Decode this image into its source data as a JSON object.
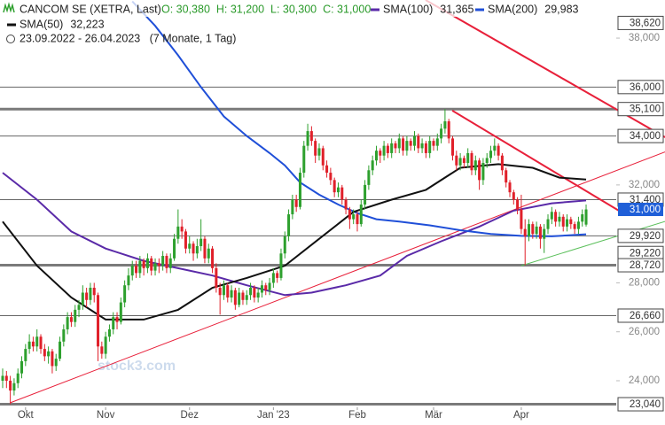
{
  "chart_data": {
    "type": "candlestick",
    "title": "CANCOM SE (XETRA, Last)",
    "ohlc_text": "O: 30,380  H: 31,200  L: 30,300  C: 31,000",
    "period": "23.09.2022 - 26.04.2023   (7 Monate, 1 Tag)",
    "watermark": "stock3.com",
    "up_color": "#2ea02e",
    "down_color": "#e0202a",
    "xlim": [
      -0.7,
      160.9
    ],
    "ylim": [
      22.915,
      39.557
    ],
    "xticks": [
      {
        "value": 6,
        "label": "Okt"
      },
      {
        "value": 27,
        "label": "Nov"
      },
      {
        "value": 49,
        "label": "Dez"
      },
      {
        "value": 71,
        "label": "Jan '23"
      },
      {
        "value": 93,
        "label": "Feb"
      },
      {
        "value": 113,
        "label": "Mär"
      },
      {
        "value": 136,
        "label": "Apr"
      }
    ],
    "yticks": [
      {
        "value": 38,
        "label": "38,000"
      },
      {
        "value": 32,
        "label": "32,000"
      },
      {
        "value": 28,
        "label": "28,000"
      },
      {
        "value": 26,
        "label": "26,000"
      },
      {
        "value": 24,
        "label": "24,000"
      }
    ],
    "levels": [
      {
        "value": 38.62,
        "label": "38,620",
        "style": "none"
      },
      {
        "value": 36.0,
        "label": "36,000",
        "style": "thin"
      },
      {
        "value": 35.1,
        "label": "35,100",
        "style": "thick"
      },
      {
        "value": 34.0,
        "label": "34,000",
        "style": "thin"
      },
      {
        "value": 31.4,
        "label": "31,400",
        "style": "thin"
      },
      {
        "value": 29.92,
        "label": "29,920",
        "style": "thin"
      },
      {
        "value": 29.22,
        "label": "29,220",
        "style": "none"
      },
      {
        "value": 28.72,
        "label": "28,720",
        "style": "thick"
      },
      {
        "value": 26.66,
        "label": "26,660",
        "style": "thin"
      },
      {
        "value": 23.04,
        "label": "23,040",
        "style": "thick"
      }
    ],
    "last": {
      "value": 31.0,
      "label": "31,000",
      "color": "#1f5fd8"
    },
    "trendlines": [
      {
        "color": "#e8203a",
        "width": 1,
        "x": [
          2,
          173.7
        ],
        "y": [
          23.1,
          33.35
        ]
      },
      {
        "color": "#e8203a",
        "width": 2,
        "x": [
          110.9,
          173.7
        ],
        "y": [
          39.557,
          33.95
        ]
      },
      {
        "color": "#e8203a",
        "width": 2,
        "x": [
          117.9,
          162.1
        ],
        "y": [
          35.04,
          30.9
        ]
      },
      {
        "color": "#5cc05c",
        "width": 1,
        "x": [
          136,
          173.7
        ],
        "y": [
          28.7,
          30.51
        ]
      }
    ],
    "series": [
      {
        "name": "SMA(100)",
        "legend_value": "31,365",
        "color": "#5a2aa8",
        "x": [
          0,
          9,
          18,
          27,
          37,
          46,
          55,
          64,
          74,
          81,
          90,
          99,
          106,
          115,
          125,
          134,
          144,
          153
        ],
        "values": [
          32.5,
          31.4,
          30.1,
          29.4,
          28.9,
          28.6,
          28.3,
          27.9,
          27.5,
          27.6,
          27.9,
          28.3,
          29.1,
          29.7,
          30.3,
          30.95,
          31.25,
          31.365
        ]
      },
      {
        "name": "SMA(200)",
        "legend_value": "29,983",
        "color": "#1f4fd8",
        "x": [
          34,
          40,
          46,
          52,
          58,
          64,
          70,
          74,
          78,
          83,
          88,
          93,
          98,
          104,
          112,
          120,
          128,
          136,
          144,
          153
        ],
        "values": [
          39.5,
          38.5,
          37.3,
          36.0,
          34.8,
          34.0,
          33.3,
          32.8,
          32.1,
          31.6,
          31.2,
          30.85,
          30.6,
          30.5,
          30.35,
          30.15,
          30.0,
          29.92,
          29.9,
          29.983
        ]
      },
      {
        "name": "SMA(50)",
        "legend_value": "32,223",
        "color": "#111111",
        "x": [
          0,
          9,
          18,
          27,
          37,
          46,
          55,
          64,
          74,
          83,
          92,
          102,
          111,
          120,
          130,
          139,
          146,
          153
        ],
        "values": [
          30.5,
          28.7,
          27.4,
          26.5,
          26.5,
          26.9,
          27.8,
          28.2,
          28.7,
          29.8,
          30.9,
          31.4,
          31.8,
          32.7,
          32.85,
          32.7,
          32.3,
          32.223
        ]
      }
    ],
    "ohlc": [
      [
        24.0,
        24.5,
        23.7,
        24.2
      ],
      [
        24.2,
        24.4,
        23.7,
        24.0
      ],
      [
        24.0,
        24.2,
        23.04,
        23.6
      ],
      [
        23.6,
        24.1,
        23.4,
        23.9
      ],
      [
        23.9,
        24.5,
        23.7,
        24.3
      ],
      [
        24.3,
        25.0,
        24.1,
        24.8
      ],
      [
        24.8,
        25.5,
        24.6,
        25.3
      ],
      [
        25.3,
        25.9,
        25.1,
        25.6
      ],
      [
        25.6,
        25.8,
        25.2,
        25.4
      ],
      [
        25.4,
        26.1,
        25.2,
        25.8
      ],
      [
        25.8,
        25.9,
        25.1,
        25.3
      ],
      [
        25.3,
        25.5,
        24.8,
        25.0
      ],
      [
        25.0,
        25.4,
        24.7,
        25.2
      ],
      [
        25.2,
        25.3,
        24.3,
        24.6
      ],
      [
        24.6,
        25.1,
        24.4,
        24.9
      ],
      [
        24.9,
        25.8,
        24.8,
        25.6
      ],
      [
        25.6,
        26.3,
        25.4,
        26.1
      ],
      [
        26.1,
        26.8,
        25.9,
        26.6
      ],
      [
        26.6,
        26.8,
        26.2,
        26.4
      ],
      [
        26.4,
        27.1,
        26.2,
        26.9
      ],
      [
        26.9,
        27.3,
        26.6,
        27.1
      ],
      [
        27.1,
        27.9,
        26.9,
        27.6
      ],
      [
        27.6,
        27.8,
        27.0,
        27.3
      ],
      [
        27.3,
        28.0,
        27.1,
        27.8
      ],
      [
        27.8,
        28.0,
        27.2,
        27.5
      ],
      [
        27.5,
        27.6,
        24.8,
        25.4
      ],
      [
        25.4,
        25.6,
        24.9,
        25.1
      ],
      [
        25.1,
        26.0,
        24.9,
        25.8
      ],
      [
        25.8,
        26.3,
        25.6,
        26.1
      ],
      [
        26.1,
        26.8,
        25.9,
        26.6
      ],
      [
        26.6,
        26.8,
        26.1,
        26.4
      ],
      [
        26.4,
        27.4,
        26.3,
        27.2
      ],
      [
        27.2,
        28.1,
        27.0,
        27.9
      ],
      [
        27.9,
        28.6,
        27.7,
        28.3
      ],
      [
        28.3,
        28.9,
        28.1,
        28.7
      ],
      [
        28.7,
        28.9,
        28.2,
        28.4
      ],
      [
        28.4,
        29.1,
        28.2,
        28.9
      ],
      [
        28.9,
        29.0,
        28.3,
        28.6
      ],
      [
        28.6,
        29.2,
        28.4,
        29.0
      ],
      [
        29.0,
        29.1,
        28.3,
        28.5
      ],
      [
        28.5,
        29.0,
        28.3,
        28.8
      ],
      [
        28.8,
        29.0,
        28.4,
        28.7
      ],
      [
        28.7,
        29.3,
        28.5,
        29.1
      ],
      [
        29.1,
        29.2,
        28.4,
        28.6
      ],
      [
        28.6,
        29.2,
        28.4,
        29.0
      ],
      [
        29.0,
        30.0,
        28.9,
        29.8
      ],
      [
        29.8,
        31.0,
        29.6,
        30.3
      ],
      [
        30.3,
        30.6,
        29.8,
        30.1
      ],
      [
        30.1,
        30.2,
        29.2,
        29.4
      ],
      [
        29.4,
        29.9,
        29.2,
        29.6
      ],
      [
        29.6,
        29.7,
        28.9,
        29.2
      ],
      [
        29.2,
        29.8,
        29.0,
        29.5
      ],
      [
        29.5,
        30.6,
        29.3,
        29.8
      ],
      [
        29.8,
        29.9,
        28.8,
        29.0
      ],
      [
        29.0,
        29.6,
        28.8,
        29.4
      ],
      [
        29.4,
        29.5,
        28.4,
        28.6
      ],
      [
        28.6,
        28.8,
        27.6,
        27.8
      ],
      [
        27.8,
        28.0,
        26.7,
        27.5
      ],
      [
        27.5,
        28.1,
        27.3,
        27.9
      ],
      [
        27.9,
        28.0,
        27.2,
        27.4
      ],
      [
        27.4,
        27.9,
        27.2,
        27.7
      ],
      [
        27.7,
        27.8,
        26.9,
        27.1
      ],
      [
        27.1,
        27.8,
        27.0,
        27.6
      ],
      [
        27.6,
        27.7,
        27.1,
        27.3
      ],
      [
        27.3,
        27.7,
        27.1,
        27.5
      ],
      [
        27.5,
        28.0,
        27.3,
        27.8
      ],
      [
        27.8,
        27.9,
        27.2,
        27.4
      ],
      [
        27.4,
        27.8,
        27.2,
        27.6
      ],
      [
        27.6,
        28.1,
        27.4,
        27.9
      ],
      [
        27.9,
        28.0,
        27.5,
        27.7
      ],
      [
        27.7,
        28.2,
        27.5,
        28.0
      ],
      [
        28.0,
        28.6,
        27.8,
        28.4
      ],
      [
        28.4,
        28.5,
        28.0,
        28.2
      ],
      [
        28.2,
        29.4,
        28.1,
        29.2
      ],
      [
        29.2,
        30.1,
        29.0,
        29.9
      ],
      [
        29.9,
        31.0,
        29.7,
        30.8
      ],
      [
        30.8,
        31.6,
        30.6,
        31.4
      ],
      [
        31.4,
        31.6,
        30.9,
        31.1
      ],
      [
        31.1,
        32.7,
        31.0,
        32.5
      ],
      [
        32.5,
        33.8,
        32.3,
        33.6
      ],
      [
        33.6,
        34.5,
        33.4,
        34.2
      ],
      [
        34.2,
        34.4,
        33.6,
        33.8
      ],
      [
        33.8,
        33.9,
        32.9,
        33.2
      ],
      [
        33.2,
        33.7,
        33.0,
        33.5
      ],
      [
        33.5,
        33.6,
        32.6,
        32.8
      ],
      [
        32.8,
        33.0,
        32.3,
        32.5
      ],
      [
        32.5,
        32.7,
        32.0,
        32.2
      ],
      [
        32.2,
        32.3,
        31.5,
        31.7
      ],
      [
        31.7,
        32.1,
        31.5,
        31.9
      ],
      [
        31.9,
        32.0,
        31.2,
        31.4
      ],
      [
        31.4,
        31.5,
        30.8,
        31.0
      ],
      [
        31.0,
        31.1,
        30.2,
        30.6
      ],
      [
        30.6,
        31.0,
        30.4,
        30.8
      ],
      [
        30.8,
        30.9,
        30.1,
        30.4
      ],
      [
        30.4,
        31.4,
        30.3,
        31.2
      ],
      [
        31.2,
        32.2,
        31.0,
        32.0
      ],
      [
        32.0,
        32.8,
        31.8,
        32.6
      ],
      [
        32.6,
        33.2,
        32.4,
        33.0
      ],
      [
        33.0,
        33.6,
        32.8,
        33.4
      ],
      [
        33.4,
        33.5,
        32.9,
        33.2
      ],
      [
        33.2,
        33.8,
        33.0,
        33.6
      ],
      [
        33.6,
        33.7,
        33.1,
        33.3
      ],
      [
        33.3,
        33.9,
        33.1,
        33.7
      ],
      [
        33.7,
        33.8,
        33.3,
        33.5
      ],
      [
        33.5,
        34.1,
        33.3,
        33.9
      ],
      [
        33.9,
        34.0,
        33.2,
        33.4
      ],
      [
        33.4,
        34.0,
        33.2,
        33.8
      ],
      [
        33.8,
        33.9,
        33.4,
        33.6
      ],
      [
        33.6,
        34.2,
        33.4,
        34.0
      ],
      [
        34.0,
        34.1,
        33.3,
        33.5
      ],
      [
        33.5,
        33.9,
        33.3,
        33.7
      ],
      [
        33.7,
        33.8,
        33.1,
        33.3
      ],
      [
        33.3,
        34.0,
        33.1,
        33.8
      ],
      [
        33.8,
        33.9,
        33.4,
        33.6
      ],
      [
        33.6,
        34.1,
        33.4,
        33.9
      ],
      [
        33.9,
        34.5,
        33.7,
        34.3
      ],
      [
        34.3,
        35.1,
        34.1,
        34.6
      ],
      [
        34.6,
        34.7,
        33.7,
        33.9
      ],
      [
        33.9,
        34.0,
        33.0,
        33.2
      ],
      [
        33.2,
        33.4,
        32.6,
        32.8
      ],
      [
        32.8,
        33.3,
        32.6,
        33.1
      ],
      [
        33.1,
        33.2,
        32.7,
        32.9
      ],
      [
        32.9,
        33.5,
        32.7,
        33.3
      ],
      [
        33.3,
        33.4,
        32.4,
        32.6
      ],
      [
        32.6,
        33.2,
        32.4,
        33.0
      ],
      [
        33.0,
        33.1,
        31.8,
        32.2
      ],
      [
        32.2,
        33.1,
        32.0,
        32.9
      ],
      [
        32.9,
        33.3,
        32.7,
        33.1
      ],
      [
        33.1,
        33.6,
        32.9,
        33.4
      ],
      [
        33.4,
        33.9,
        33.2,
        33.6
      ],
      [
        33.6,
        33.7,
        33.0,
        33.2
      ],
      [
        33.2,
        33.3,
        32.4,
        32.6
      ],
      [
        32.6,
        32.7,
        31.9,
        32.1
      ],
      [
        32.1,
        32.2,
        31.5,
        31.7
      ],
      [
        31.7,
        31.8,
        31.2,
        31.4
      ],
      [
        31.4,
        31.5,
        30.8,
        31.0
      ],
      [
        31.0,
        31.6,
        30.0,
        30.2
      ],
      [
        30.2,
        30.6,
        28.72,
        29.9
      ],
      [
        29.9,
        30.6,
        29.7,
        30.4
      ],
      [
        30.4,
        30.5,
        29.8,
        30.0
      ],
      [
        30.0,
        30.5,
        29.8,
        30.3
      ],
      [
        30.3,
        30.4,
        29.4,
        29.8
      ],
      [
        29.8,
        30.4,
        29.22,
        30.2
      ],
      [
        30.2,
        30.8,
        30.0,
        30.6
      ],
      [
        30.6,
        31.1,
        30.4,
        30.9
      ],
      [
        30.9,
        31.0,
        30.3,
        30.5
      ],
      [
        30.5,
        30.9,
        30.3,
        30.7
      ],
      [
        30.7,
        30.8,
        30.1,
        30.3
      ],
      [
        30.3,
        30.8,
        30.1,
        30.6
      ],
      [
        30.6,
        30.7,
        30.2,
        30.4
      ],
      [
        30.4,
        30.5,
        30.0,
        30.2
      ],
      [
        30.2,
        30.7,
        30.0,
        30.5
      ],
      [
        30.5,
        31.0,
        30.3,
        30.8
      ],
      [
        30.38,
        31.2,
        30.3,
        31.0
      ]
    ]
  }
}
